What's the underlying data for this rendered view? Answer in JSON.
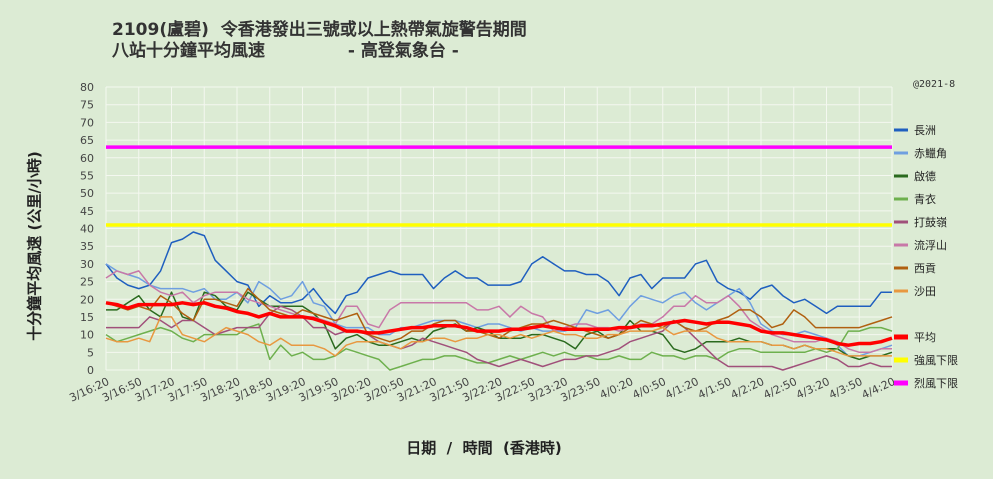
{
  "title_line1": "2109(盧碧)  令香港發出三號或以上熱帶氣旋警告期間",
  "title_line2": "八站十分鐘平均風速              - 高登氣象台 -",
  "credit": "@2021-8",
  "colors": {
    "background": "#dcebd4",
    "grid": "#f4f8f0"
  },
  "chart_data": {
    "type": "line",
    "ylabel": "十分鐘平均風速  (公里/小時)",
    "xlabel": "日期  /  時間  (香港時)",
    "ylim": [
      0,
      80
    ],
    "yticks": [
      0,
      5,
      10,
      15,
      20,
      25,
      30,
      35,
      40,
      45,
      50,
      55,
      60,
      65,
      70,
      75,
      80
    ],
    "grid": true,
    "legend_position": "right",
    "x_tick_labels": [
      "3/16:20",
      "3/16:50",
      "3/17:20",
      "3/17:50",
      "3/18:20",
      "3/18:50",
      "3/19:20",
      "3/19:50",
      "3/20:20",
      "3/20:50",
      "3/21:20",
      "3/21:50",
      "3/22:20",
      "3/22:50",
      "3/23:20",
      "3/23:50",
      "4/0:20",
      "4/0:50",
      "4/1:20",
      "4/1:50",
      "4/2:20",
      "4/2:50",
      "4/3:20",
      "4/3:50",
      "4/4:20"
    ],
    "series": [
      {
        "name": "長洲",
        "color": "#1f5fbf",
        "width": 1.5,
        "values": [
          30,
          26,
          24,
          23,
          24,
          28,
          36,
          37,
          39,
          38,
          31,
          28,
          25,
          24,
          18,
          21,
          19,
          19,
          20,
          23,
          19,
          16,
          21,
          22,
          26,
          27,
          28,
          27,
          27,
          27,
          23,
          26,
          28,
          26,
          26,
          24,
          24,
          24,
          25,
          30,
          32,
          30,
          28,
          28,
          27,
          27,
          25,
          21,
          26,
          27,
          23,
          26,
          26,
          26,
          30,
          31,
          25,
          23,
          22,
          20,
          23,
          24,
          21,
          19,
          20,
          18,
          16,
          18,
          18,
          18,
          18,
          22,
          22
        ]
      },
      {
        "name": "赤鱲角",
        "color": "#6f9fe0",
        "width": 1.5,
        "values": [
          30,
          28,
          27,
          26,
          24,
          23,
          23,
          23,
          22,
          23,
          20,
          20,
          22,
          19,
          25,
          23,
          20,
          21,
          25,
          19,
          18,
          13,
          12,
          12,
          12,
          10,
          10,
          12,
          12,
          13,
          14,
          14,
          14,
          13,
          12,
          13,
          13,
          12,
          11,
          12,
          11,
          11,
          11,
          12,
          17,
          16,
          17,
          14,
          18,
          21,
          20,
          19,
          21,
          22,
          19,
          17,
          19,
          21,
          23,
          19,
          13,
          11,
          10,
          10,
          11,
          10,
          9,
          7,
          4,
          4,
          5,
          6,
          7
        ]
      },
      {
        "name": "啟德",
        "color": "#2a6a1e",
        "width": 1.5,
        "values": [
          17,
          17,
          19,
          21,
          17,
          15,
          22,
          15,
          14,
          22,
          21,
          18,
          17,
          22,
          20,
          18,
          18,
          18,
          18,
          16,
          13,
          6,
          9,
          10,
          8,
          7,
          7,
          8,
          9,
          8,
          11,
          12,
          13,
          11,
          12,
          11,
          9,
          9,
          9,
          10,
          10,
          9,
          8,
          6,
          10,
          11,
          9,
          10,
          14,
          11,
          11,
          10,
          6,
          5,
          6,
          8,
          8,
          8,
          9,
          8,
          8,
          7,
          7,
          6,
          7,
          6,
          6,
          6,
          4,
          3,
          4,
          4,
          5
        ]
      },
      {
        "name": "青衣",
        "color": "#6eb04e",
        "width": 1.5,
        "values": [
          10,
          8,
          9,
          10,
          11,
          12,
          11,
          9,
          8,
          10,
          10,
          10,
          10,
          12,
          13,
          3,
          7,
          4,
          5,
          3,
          3,
          4,
          6,
          5,
          4,
          3,
          0,
          1,
          2,
          3,
          3,
          4,
          4,
          3,
          2,
          2,
          3,
          4,
          3,
          4,
          5,
          4,
          5,
          4,
          4,
          3,
          3,
          4,
          3,
          3,
          5,
          4,
          4,
          3,
          4,
          4,
          3,
          5,
          6,
          6,
          5,
          5,
          5,
          5,
          5,
          6,
          5,
          6,
          11,
          11,
          12,
          12,
          11
        ]
      },
      {
        "name": "打鼓嶺",
        "color": "#a0507a",
        "width": 1.5,
        "values": [
          12,
          12,
          12,
          12,
          15,
          14,
          12,
          14,
          14,
          12,
          10,
          11,
          12,
          12,
          12,
          16,
          18,
          17,
          15,
          12,
          12,
          10,
          11,
          11,
          10,
          8,
          7,
          6,
          7,
          9,
          8,
          7,
          6,
          5,
          3,
          2,
          1,
          2,
          3,
          2,
          1,
          2,
          3,
          3,
          4,
          4,
          5,
          6,
          8,
          9,
          10,
          11,
          14,
          12,
          9,
          6,
          3,
          1,
          1,
          1,
          1,
          1,
          0,
          1,
          2,
          3,
          4,
          3,
          1,
          1,
          2,
          1,
          1
        ]
      },
      {
        "name": "流浮山",
        "color": "#c878a8",
        "width": 1.5,
        "values": [
          26,
          28,
          27,
          28,
          24,
          22,
          21,
          22,
          19,
          21,
          22,
          22,
          22,
          20,
          19,
          18,
          17,
          16,
          15,
          15,
          14,
          13,
          18,
          18,
          13,
          12,
          17,
          19,
          19,
          19,
          19,
          19,
          19,
          19,
          17,
          17,
          18,
          15,
          18,
          16,
          15,
          11,
          12,
          13,
          13,
          12,
          12,
          11,
          12,
          13,
          13,
          15,
          18,
          18,
          21,
          19,
          19,
          21,
          18,
          14,
          12,
          10,
          9,
          8,
          8,
          8,
          9,
          8,
          6,
          5,
          5,
          6,
          6
        ]
      },
      {
        "name": "西貢",
        "color": "#b06010",
        "width": 1.5,
        "values": [
          19,
          18,
          17,
          18,
          17,
          21,
          19,
          16,
          14,
          20,
          20,
          19,
          18,
          23,
          20,
          17,
          16,
          15,
          17,
          16,
          15,
          14,
          15,
          16,
          10,
          9,
          8,
          9,
          11,
          11,
          13,
          14,
          14,
          11,
          11,
          10,
          9,
          11,
          12,
          13,
          13,
          14,
          13,
          12,
          11,
          10,
          9,
          10,
          12,
          14,
          13,
          12,
          14,
          12,
          11,
          12,
          14,
          15,
          17,
          17,
          15,
          12,
          13,
          17,
          15,
          12,
          12,
          12,
          12,
          12,
          13,
          14,
          15
        ]
      },
      {
        "name": "沙田",
        "color": "#e89840",
        "width": 1.5,
        "values": [
          9,
          8,
          8,
          9,
          8,
          15,
          15,
          10,
          9,
          8,
          10,
          12,
          11,
          10,
          8,
          7,
          9,
          7,
          7,
          7,
          6,
          4,
          7,
          8,
          8,
          8,
          7,
          6,
          8,
          8,
          9,
          9,
          8,
          9,
          9,
          10,
          10,
          9,
          10,
          9,
          10,
          11,
          10,
          10,
          9,
          9,
          10,
          10,
          11,
          11,
          11,
          12,
          10,
          11,
          11,
          11,
          9,
          8,
          8,
          8,
          8,
          7,
          7,
          6,
          7,
          6,
          6,
          5,
          4,
          4,
          4,
          4,
          4
        ]
      },
      {
        "name": "平均",
        "color": "#ff0000",
        "width": 3.5,
        "values": [
          19,
          18.5,
          17.5,
          18.5,
          18.5,
          18.5,
          18.5,
          19,
          18.5,
          19,
          18,
          17.5,
          16.5,
          16,
          15,
          16,
          15,
          15,
          15,
          14.5,
          13.5,
          12.5,
          11,
          11,
          10.5,
          10.5,
          11,
          11.5,
          12,
          12,
          12.5,
          12.5,
          12.5,
          12,
          11,
          11,
          11,
          11.5,
          11.5,
          12,
          12.5,
          12,
          11.5,
          11.5,
          11.5,
          11.5,
          11.5,
          12,
          12,
          12.5,
          12.5,
          13,
          13.5,
          14,
          13.5,
          13,
          13.5,
          13.5,
          13,
          12.5,
          11,
          10.5,
          10.5,
          10,
          9.5,
          9,
          8.5,
          7.5,
          7,
          7.5,
          7.5,
          8,
          9
        ]
      },
      {
        "name": "強風下限",
        "color": "#ffff00",
        "width": 3.5,
        "constant": 41
      },
      {
        "name": "烈風下限",
        "color": "#ff00ff",
        "width": 3.5,
        "constant": 63
      }
    ]
  }
}
